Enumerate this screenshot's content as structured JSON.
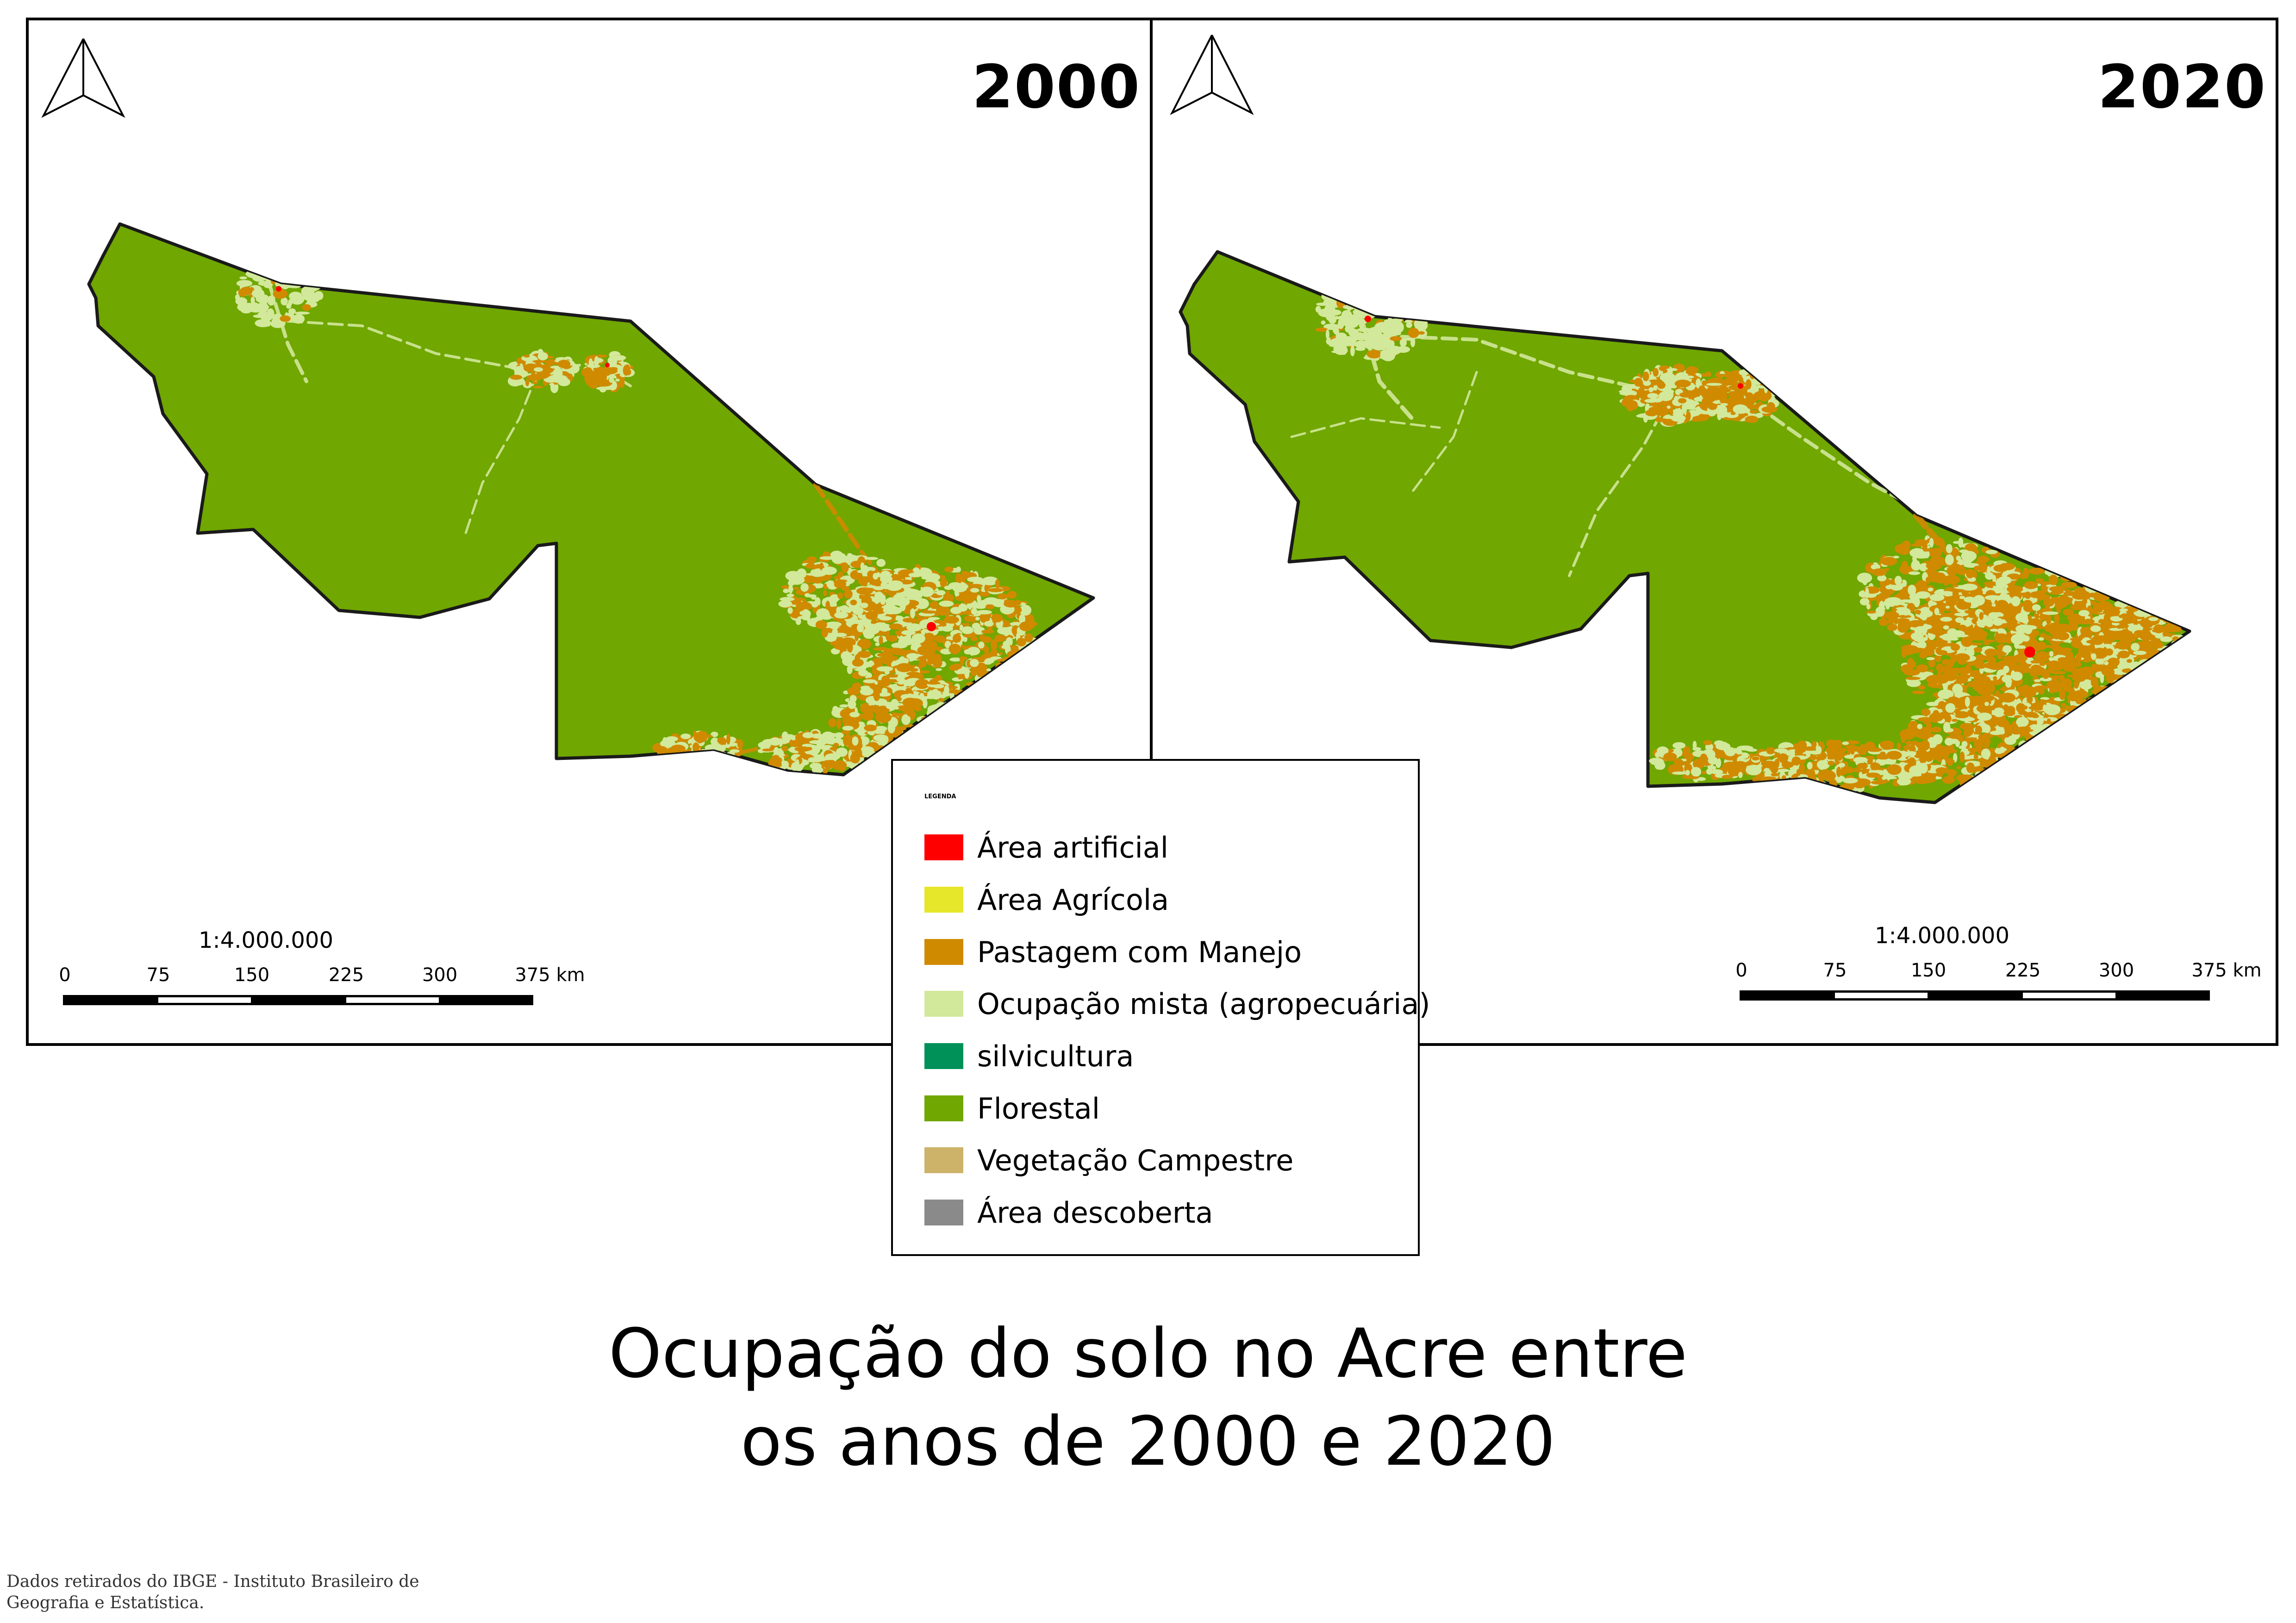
{
  "colors": {
    "forest": "#70A700",
    "boundary": "#1a1a1a"
  },
  "maps": [
    {
      "year": "2000",
      "scale_ratio": "1:4.000.000",
      "scale_ticks": [
        "0",
        "75",
        "150",
        "225",
        "300",
        "375 km"
      ],
      "north_arrow": "north-arrow-icon"
    },
    {
      "year": "2020",
      "scale_ratio": "1:4.000.000",
      "scale_ticks": [
        "0",
        "75",
        "150",
        "225",
        "300",
        "375 km"
      ],
      "north_arrow": "north-arrow-icon"
    }
  ],
  "legend": {
    "title": "LEGENDA",
    "items": [
      {
        "label": "Área artificial",
        "color": "#FF0000"
      },
      {
        "label": "Área Agrícola",
        "color": "#E6E62A"
      },
      {
        "label": "Pastagem com Manejo",
        "color": "#D08A00"
      },
      {
        "label": "Ocupação mista (agropecuária)",
        "color": "#D2E89A"
      },
      {
        "label": "silvicultura",
        "color": "#009159"
      },
      {
        "label": "Florestal",
        "color": "#70A700"
      },
      {
        "label": "Vegetação Campestre",
        "color": "#CDB26A"
      },
      {
        "label": "Área descoberta",
        "color": "#8A8A8A"
      }
    ]
  },
  "title": {
    "line1": "Ocupação do solo no Acre entre",
    "line2": "os anos de 2000 e 2020"
  },
  "source": {
    "line1": "Dados retirados do IBGE - Instituto Brasileiro de",
    "line2": "Geografia e Estatística."
  }
}
